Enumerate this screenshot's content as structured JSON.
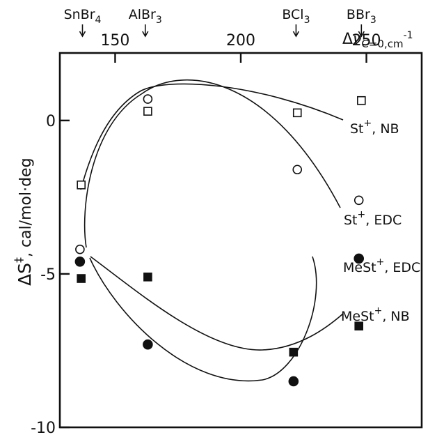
{
  "chart_data": {
    "type": "scatter",
    "top_axis": {
      "label_prefix": "Δ",
      "label_symbol": "ν",
      "label_sub": "C=0,cm",
      "label_sup": "-1",
      "ticks": [
        150,
        200,
        250
      ],
      "range": [
        128,
        272
      ]
    },
    "left_axis": {
      "label_main": "ΔS",
      "label_sup": "‡",
      "label_unit": ", cal/mol·deg",
      "ticks": [
        0,
        -5,
        -10
      ],
      "range": [
        -10,
        2.2
      ]
    },
    "conditions": [
      {
        "name": "SnBr",
        "sub": "4",
        "x": 137
      },
      {
        "name": "AlBr",
        "sub": "3",
        "x": 162
      },
      {
        "name": "BCl",
        "sub": "3",
        "x": 222
      },
      {
        "name": "BBr",
        "sub": "3",
        "x": 248
      }
    ],
    "series": [
      {
        "name": "St",
        "sup": "+",
        "suffix": ", NB",
        "marker": "open-square",
        "points": [
          [
            136.5,
            -2.1
          ],
          [
            163,
            0.3
          ],
          [
            222.5,
            0.25
          ],
          [
            248,
            0.65
          ]
        ]
      },
      {
        "name": "St",
        "sup": "+",
        "suffix": ", EDC",
        "marker": "open-circle",
        "points": [
          [
            136,
            -4.2
          ],
          [
            163,
            0.7
          ],
          [
            222.5,
            -1.6
          ],
          [
            247,
            -2.6
          ]
        ]
      },
      {
        "name": "MeSt",
        "sup": "+",
        "suffix": ", EDC",
        "marker": "filled-circle",
        "points": [
          [
            136,
            -4.6
          ],
          [
            163,
            -7.3
          ],
          [
            221,
            -8.5
          ],
          [
            247,
            -4.5
          ]
        ]
      },
      {
        "name": "MeSt",
        "sup": "+",
        "suffix": ", NB",
        "marker": "filled-square",
        "points": [
          [
            136.5,
            -5.15
          ],
          [
            163,
            -5.1
          ],
          [
            221,
            -7.55
          ],
          [
            247,
            -6.7
          ]
        ]
      }
    ]
  }
}
